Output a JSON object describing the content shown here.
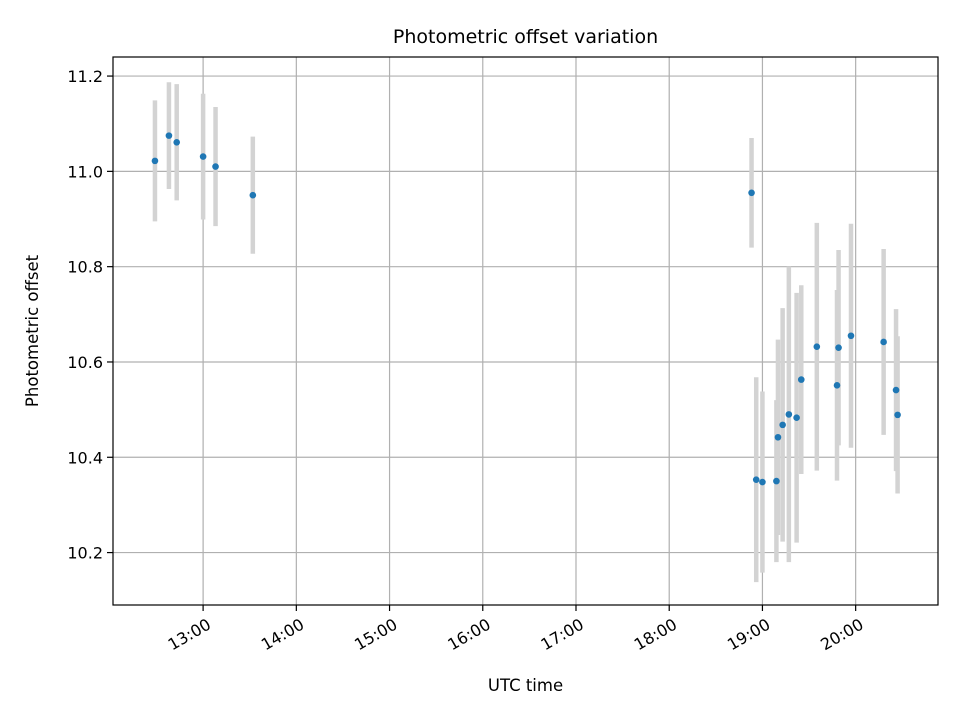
{
  "chart_data": {
    "type": "scatter",
    "title": "Photometric offset variation",
    "xlabel": "UTC time",
    "ylabel": "Photometric offset",
    "x_tick_labels": [
      "13:00",
      "14:00",
      "15:00",
      "16:00",
      "17:00",
      "18:00",
      "19:00",
      "20:00"
    ],
    "y_tick_labels": [
      "10.2",
      "10.4",
      "10.6",
      "10.8",
      "11.0",
      "11.2"
    ],
    "y_ticks": [
      10.2,
      10.4,
      10.6,
      10.8,
      11.0,
      11.2
    ],
    "xlim": [
      "12:02",
      "20:53"
    ],
    "ylim": [
      10.09,
      11.24
    ],
    "grid": true,
    "point_color": "#1f77b4",
    "errorbar_color": "#d3d3d3",
    "points": [
      {
        "x": "12:29",
        "y": 11.022,
        "err": 0.127
      },
      {
        "x": "12:38",
        "y": 11.075,
        "err": 0.112
      },
      {
        "x": "12:43",
        "y": 11.061,
        "err": 0.122
      },
      {
        "x": "13:00",
        "y": 11.031,
        "err": 0.132
      },
      {
        "x": "13:08",
        "y": 11.01,
        "err": 0.125
      },
      {
        "x": "13:32",
        "y": 10.95,
        "err": 0.123
      },
      {
        "x": "18:53",
        "y": 10.955,
        "err": 0.115
      },
      {
        "x": "18:56",
        "y": 10.353,
        "err": 0.215
      },
      {
        "x": "19:00",
        "y": 10.348,
        "err": 0.19
      },
      {
        "x": "19:09",
        "y": 10.35,
        "err": 0.17
      },
      {
        "x": "19:10",
        "y": 10.442,
        "err": 0.205
      },
      {
        "x": "19:13",
        "y": 10.468,
        "err": 0.245
      },
      {
        "x": "19:17",
        "y": 10.49,
        "err": 0.31
      },
      {
        "x": "19:22",
        "y": 10.483,
        "err": 0.262
      },
      {
        "x": "19:25",
        "y": 10.563,
        "err": 0.198
      },
      {
        "x": "19:35",
        "y": 10.632,
        "err": 0.26
      },
      {
        "x": "19:48",
        "y": 10.551,
        "err": 0.2
      },
      {
        "x": "19:49",
        "y": 10.63,
        "err": 0.205
      },
      {
        "x": "19:57",
        "y": 10.655,
        "err": 0.235
      },
      {
        "x": "20:18",
        "y": 10.642,
        "err": 0.195
      },
      {
        "x": "20:26",
        "y": 10.541,
        "err": 0.17
      },
      {
        "x": "20:27",
        "y": 10.489,
        "err": 0.165
      }
    ]
  }
}
